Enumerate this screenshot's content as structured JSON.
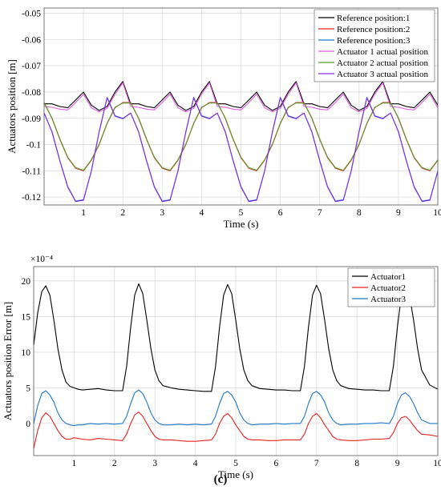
{
  "caption": "(c)",
  "chart_data": [
    {
      "type": "line",
      "xlabel": "Time (s)",
      "ylabel": "Actuators position [m]",
      "xlim": [
        0,
        10
      ],
      "ylim": [
        -0.123,
        -0.048
      ],
      "xticks": [
        1,
        2,
        3,
        4,
        5,
        6,
        7,
        8,
        9,
        10
      ],
      "xtick_labels": [
        "1",
        "2",
        "3",
        "4",
        "5",
        "6",
        "7",
        "8",
        "9",
        "10"
      ],
      "yticks": [
        -0.05,
        -0.06,
        -0.07,
        -0.08,
        -0.09,
        -0.1,
        -0.11,
        -0.12
      ],
      "ytick_labels": [
        "-0.05",
        "-0.06",
        "-0.07",
        "-0.08",
        "-0.09",
        "-0.1",
        "-0.11",
        "-0.12"
      ],
      "grid": true,
      "legend_position": "top-right",
      "x": [
        0,
        0.2,
        0.4,
        0.6,
        0.8,
        1.0,
        1.2,
        1.4,
        1.6,
        1.8,
        2.0,
        2.2,
        2.4,
        2.6,
        2.8,
        3.0,
        3.2,
        3.4,
        3.6,
        3.8,
        4.0,
        4.2,
        4.4,
        4.6,
        4.8,
        5.0,
        5.2,
        5.4,
        5.6,
        5.8,
        6.0,
        6.2,
        6.4,
        6.6,
        6.8,
        7.0,
        7.2,
        7.4,
        7.6,
        7.8,
        8.0,
        8.2,
        8.4,
        8.6,
        8.8,
        9.0,
        9.2,
        9.4,
        9.6,
        9.8,
        10.0
      ],
      "series": [
        {
          "name": "Reference position:1",
          "color": "#000000",
          "values": [
            -0.0845,
            -0.0845,
            -0.0855,
            -0.086,
            -0.083,
            -0.08,
            -0.085,
            -0.087,
            -0.0855,
            -0.08,
            -0.076,
            -0.0845,
            -0.0845,
            -0.0855,
            -0.086,
            -0.083,
            -0.08,
            -0.085,
            -0.087,
            -0.0855,
            -0.08,
            -0.076,
            -0.0845,
            -0.0845,
            -0.0855,
            -0.086,
            -0.083,
            -0.08,
            -0.085,
            -0.087,
            -0.0855,
            -0.08,
            -0.076,
            -0.0845,
            -0.0845,
            -0.0855,
            -0.086,
            -0.083,
            -0.08,
            -0.085,
            -0.087,
            -0.0855,
            -0.08,
            -0.076,
            -0.0845,
            -0.0845,
            -0.0855,
            -0.086,
            -0.083,
            -0.08,
            -0.085
          ]
        },
        {
          "name": "Reference position:2",
          "color": "#e8231f",
          "values": [
            -0.084,
            -0.09,
            -0.098,
            -0.105,
            -0.109,
            -0.11,
            -0.106,
            -0.1,
            -0.092,
            -0.086,
            -0.084,
            -0.084,
            -0.09,
            -0.098,
            -0.105,
            -0.109,
            -0.11,
            -0.106,
            -0.1,
            -0.092,
            -0.086,
            -0.084,
            -0.084,
            -0.09,
            -0.098,
            -0.105,
            -0.109,
            -0.11,
            -0.106,
            -0.1,
            -0.092,
            -0.086,
            -0.084,
            -0.084,
            -0.09,
            -0.098,
            -0.105,
            -0.109,
            -0.11,
            -0.106,
            -0.1,
            -0.092,
            -0.086,
            -0.084,
            -0.084,
            -0.09,
            -0.098,
            -0.105,
            -0.109,
            -0.11,
            -0.106
          ]
        },
        {
          "name": "Reference position:3",
          "color": "#1f77c9",
          "values": [
            -0.088,
            -0.095,
            -0.106,
            -0.116,
            -0.1215,
            -0.121,
            -0.11,
            -0.095,
            -0.082,
            -0.089,
            -0.09,
            -0.088,
            -0.095,
            -0.106,
            -0.116,
            -0.1215,
            -0.121,
            -0.11,
            -0.095,
            -0.082,
            -0.089,
            -0.09,
            -0.088,
            -0.095,
            -0.106,
            -0.116,
            -0.1215,
            -0.121,
            -0.11,
            -0.095,
            -0.082,
            -0.089,
            -0.09,
            -0.088,
            -0.095,
            -0.106,
            -0.116,
            -0.1215,
            -0.121,
            -0.11,
            -0.095,
            -0.082,
            -0.089,
            -0.09,
            -0.088,
            -0.095,
            -0.106,
            -0.116,
            -0.1215,
            -0.121,
            -0.11
          ]
        },
        {
          "name": "Actuator 1 actual position",
          "color": "#e05ce0",
          "values": [
            -0.0855,
            -0.0858,
            -0.0865,
            -0.0868,
            -0.084,
            -0.0808,
            -0.086,
            -0.0875,
            -0.0862,
            -0.0808,
            -0.0765,
            -0.0855,
            -0.0858,
            -0.0865,
            -0.0868,
            -0.084,
            -0.0808,
            -0.086,
            -0.0875,
            -0.0862,
            -0.0808,
            -0.0765,
            -0.0855,
            -0.0858,
            -0.0865,
            -0.0868,
            -0.084,
            -0.0808,
            -0.086,
            -0.0875,
            -0.0862,
            -0.0808,
            -0.0765,
            -0.0855,
            -0.0858,
            -0.0865,
            -0.0868,
            -0.084,
            -0.0808,
            -0.086,
            -0.0875,
            -0.0862,
            -0.0808,
            -0.0765,
            -0.0855,
            -0.0858,
            -0.0865,
            -0.0868,
            -0.084,
            -0.0808,
            -0.086
          ]
        },
        {
          "name": "Actuator 2 actual position",
          "color": "#5a9a2a",
          "values": [
            -0.0842,
            -0.0898,
            -0.0978,
            -0.1048,
            -0.1088,
            -0.1098,
            -0.1058,
            -0.0998,
            -0.0918,
            -0.0858,
            -0.0842,
            -0.0842,
            -0.0898,
            -0.0978,
            -0.1048,
            -0.1088,
            -0.1098,
            -0.1058,
            -0.0998,
            -0.0918,
            -0.0858,
            -0.0842,
            -0.0842,
            -0.0898,
            -0.0978,
            -0.1048,
            -0.1088,
            -0.1098,
            -0.1058,
            -0.0998,
            -0.0918,
            -0.0858,
            -0.0842,
            -0.0842,
            -0.0898,
            -0.0978,
            -0.1048,
            -0.1088,
            -0.1098,
            -0.1058,
            -0.0998,
            -0.0918,
            -0.0858,
            -0.0842,
            -0.0842,
            -0.0898,
            -0.0978,
            -0.1048,
            -0.1088,
            -0.1098,
            -0.1058
          ]
        },
        {
          "name": "Actuator 3 actual position",
          "color": "#8a2be2",
          "values": [
            -0.088,
            -0.0952,
            -0.1062,
            -0.1162,
            -0.1217,
            -0.1212,
            -0.1102,
            -0.0952,
            -0.0822,
            -0.0892,
            -0.0902,
            -0.088,
            -0.0952,
            -0.1062,
            -0.1162,
            -0.1217,
            -0.1212,
            -0.1102,
            -0.0952,
            -0.0822,
            -0.0892,
            -0.0902,
            -0.088,
            -0.0952,
            -0.1062,
            -0.1162,
            -0.1217,
            -0.1212,
            -0.1102,
            -0.0952,
            -0.0822,
            -0.0892,
            -0.0902,
            -0.088,
            -0.0952,
            -0.1062,
            -0.1162,
            -0.1217,
            -0.1212,
            -0.1102,
            -0.0952,
            -0.0822,
            -0.0892,
            -0.0902,
            -0.088,
            -0.0952,
            -0.1062,
            -0.1162,
            -0.1217,
            -0.1212,
            -0.1102
          ]
        }
      ]
    },
    {
      "type": "line",
      "xlabel": "Time (s)",
      "ylabel": "Actuators position Error [m]",
      "scale_label": "×10⁻⁴",
      "xlim": [
        0,
        10
      ],
      "ylim": [
        -4.5,
        22
      ],
      "xticks": [
        1,
        2,
        3,
        4,
        5,
        6,
        7,
        8,
        9,
        10
      ],
      "xtick_labels": [
        "1",
        "2",
        "3",
        "4",
        "5",
        "6",
        "7",
        "8",
        "9",
        "10"
      ],
      "yticks": [
        20,
        15,
        10,
        5,
        0
      ],
      "ytick_labels": [
        "20",
        "15",
        "10",
        "5",
        "0"
      ],
      "grid": true,
      "legend_position": "top-right",
      "x": [
        0,
        0.1,
        0.2,
        0.3,
        0.4,
        0.5,
        0.6,
        0.7,
        0.8,
        0.9,
        1.0,
        1.1,
        1.2,
        1.4,
        1.6,
        1.8,
        2.0,
        2.2,
        2.3,
        2.4,
        2.5,
        2.6,
        2.7,
        2.8,
        2.9,
        3.0,
        3.1,
        3.2,
        3.4,
        3.6,
        3.8,
        4.0,
        4.2,
        4.4,
        4.5,
        4.6,
        4.7,
        4.8,
        4.9,
        5.0,
        5.1,
        5.2,
        5.3,
        5.4,
        5.6,
        5.8,
        6.0,
        6.2,
        6.4,
        6.6,
        6.7,
        6.8,
        6.9,
        7.0,
        7.1,
        7.2,
        7.3,
        7.4,
        7.5,
        7.6,
        7.8,
        8.0,
        8.2,
        8.4,
        8.6,
        8.8,
        8.9,
        9.0,
        9.1,
        9.2,
        9.3,
        9.4,
        9.5,
        9.6,
        9.8,
        10.0
      ],
      "series": [
        {
          "name": "Actuator1",
          "color": "#000000",
          "values": [
            11.0,
            15.5,
            18.5,
            19.3,
            18.0,
            14.5,
            10.5,
            7.5,
            5.8,
            5.2,
            5.0,
            4.8,
            4.7,
            4.8,
            4.9,
            4.7,
            4.6,
            4.6,
            8.0,
            13.5,
            18.0,
            19.6,
            18.2,
            14.5,
            10.5,
            7.5,
            6.0,
            5.3,
            5.0,
            4.8,
            4.7,
            4.6,
            4.5,
            4.5,
            8.0,
            13.5,
            18.0,
            19.5,
            18.2,
            14.5,
            10.5,
            7.5,
            6.0,
            5.3,
            4.9,
            4.8,
            4.7,
            4.7,
            4.6,
            4.6,
            8.0,
            13.5,
            18.0,
            19.4,
            18.2,
            14.5,
            10.5,
            7.5,
            6.0,
            5.3,
            4.9,
            4.8,
            4.7,
            4.7,
            4.6,
            4.6,
            8.0,
            13.5,
            18.0,
            19.2,
            18.0,
            14.5,
            10.5,
            7.5,
            5.4,
            4.8
          ]
        },
        {
          "name": "Actuator2",
          "color": "#e8231f",
          "values": [
            -3.5,
            -1.0,
            0.8,
            1.5,
            1.0,
            0.0,
            -1.0,
            -1.8,
            -2.2,
            -2.2,
            -2.0,
            -2.1,
            -2.2,
            -2.3,
            -2.1,
            -2.2,
            -2.3,
            -2.4,
            -1.5,
            0.0,
            1.2,
            1.6,
            1.0,
            0.0,
            -1.0,
            -1.8,
            -2.2,
            -2.3,
            -2.3,
            -2.4,
            -2.5,
            -2.5,
            -2.4,
            -2.3,
            -1.5,
            0.0,
            1.0,
            1.4,
            0.8,
            -0.2,
            -1.0,
            -1.8,
            -2.2,
            -2.3,
            -2.3,
            -2.4,
            -2.4,
            -2.3,
            -2.3,
            -2.3,
            -1.5,
            0.0,
            1.0,
            1.4,
            0.8,
            -0.2,
            -1.0,
            -1.8,
            -2.2,
            -2.3,
            -2.4,
            -2.4,
            -2.3,
            -2.2,
            -2.2,
            -2.1,
            -1.3,
            0.0,
            0.8,
            1.0,
            0.5,
            -0.3,
            -1.0,
            -1.5,
            -1.6,
            -1.8
          ]
        },
        {
          "name": "Actuator3",
          "color": "#1f77c9",
          "values": [
            0.0,
            2.5,
            4.2,
            4.6,
            4.0,
            3.0,
            1.5,
            0.5,
            0.0,
            -0.2,
            -0.3,
            -0.2,
            -0.2,
            0.0,
            -0.1,
            0.0,
            -0.1,
            0.0,
            1.0,
            2.8,
            4.3,
            4.7,
            4.2,
            3.0,
            1.5,
            0.5,
            0.0,
            -0.2,
            -0.2,
            -0.1,
            -0.2,
            -0.1,
            -0.2,
            -0.1,
            1.0,
            2.8,
            4.2,
            4.5,
            4.0,
            3.0,
            1.5,
            0.5,
            0.0,
            -0.2,
            -0.1,
            -0.1,
            0.0,
            -0.1,
            0.0,
            0.0,
            1.0,
            2.8,
            4.2,
            4.5,
            4.0,
            3.0,
            1.5,
            0.5,
            0.0,
            -0.2,
            -0.1,
            -0.1,
            0.0,
            0.0,
            0.1,
            0.0,
            1.0,
            2.8,
            4.0,
            4.3,
            3.8,
            2.8,
            1.5,
            0.5,
            0.0,
            0.0
          ]
        }
      ]
    }
  ]
}
